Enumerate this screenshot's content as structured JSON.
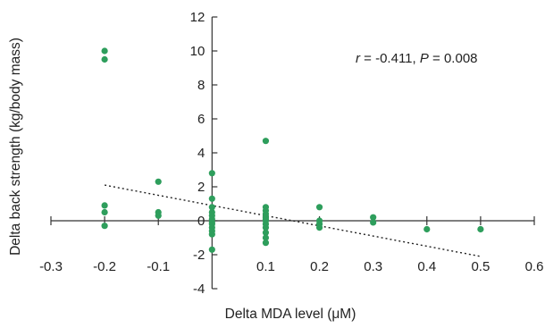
{
  "chart_data": {
    "type": "scatter",
    "title": "",
    "xlabel": "Delta MDA level (μM)",
    "ylabel": "Delta back strength (kg/body mass)",
    "xlim": [
      -0.3,
      0.6
    ],
    "ylim": [
      -4,
      12
    ],
    "x_ticks": [
      -0.3,
      -0.2,
      -0.1,
      0,
      0.1,
      0.2,
      0.3,
      0.4,
      0.5,
      0.6
    ],
    "x_tick_labels": [
      "-0.3",
      "-0.2",
      "-0.1",
      "0",
      "0.1",
      "0.2",
      "0.3",
      "0.4",
      "0.5",
      "0.6"
    ],
    "y_ticks": [
      -4,
      -2,
      0,
      2,
      4,
      6,
      8,
      10,
      12
    ],
    "y_tick_labels": [
      "-4",
      "-2",
      "0",
      "2",
      "4",
      "6",
      "8",
      "10",
      "12"
    ],
    "grid": false,
    "legend": "none",
    "point_color": "#2e9e5c",
    "annotation": {
      "r_symbol": "r",
      "r_text": " = -0.411, ",
      "p_symbol": "P",
      "p_text": " = 0.008"
    },
    "trendline": {
      "x": [
        -0.2,
        0.5
      ],
      "y": [
        2.1,
        -2.1
      ],
      "style": "dotted"
    },
    "series": [
      {
        "x": [
          -0.2,
          -0.2,
          -0.2,
          -0.2,
          -0.2,
          -0.1,
          -0.1,
          -0.1,
          0,
          0,
          0,
          0,
          0,
          0,
          0,
          0,
          0,
          0,
          0,
          0,
          0.1,
          0.1,
          0.1,
          0.1,
          0.1,
          0.1,
          0.1,
          0.1,
          0.1,
          0.1,
          0.1,
          0.1,
          0.2,
          0.2,
          0.2,
          0.2,
          0.3,
          0.3,
          0.4,
          0.5
        ],
        "y": [
          10.0,
          9.5,
          0.9,
          0.5,
          -0.3,
          2.3,
          0.5,
          0.3,
          2.8,
          1.3,
          0.8,
          0.5,
          0.3,
          0.1,
          -0.1,
          -0.2,
          -0.4,
          -0.6,
          -0.8,
          -1.7,
          4.7,
          0.8,
          0.6,
          0.4,
          0.2,
          0.1,
          0,
          -0.2,
          -0.4,
          -0.7,
          -1.0,
          -1.3,
          0.8,
          0,
          -0.2,
          -0.4,
          0.2,
          -0.1,
          -0.5,
          -0.5
        ]
      }
    ]
  }
}
